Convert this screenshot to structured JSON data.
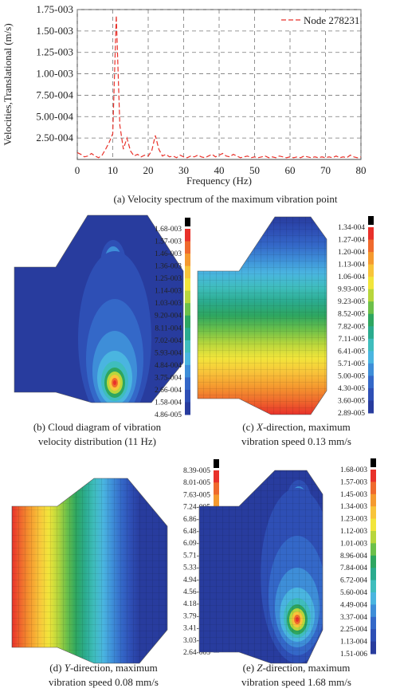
{
  "chart_data": {
    "type": "line",
    "xlabel": "Frequency (Hz)",
    "ylabel": "Velocities,Translational (m/s)",
    "caption": "(a) Velocity spectrum of the maximum vibration point",
    "x": [
      0,
      1,
      2,
      3,
      4,
      5,
      6,
      7,
      8,
      9,
      10,
      11,
      12,
      13,
      14,
      15,
      16,
      17,
      18,
      19,
      20,
      21,
      22,
      23,
      24,
      25,
      26,
      27,
      28,
      29,
      30,
      31,
      32,
      33,
      34,
      35,
      36,
      37,
      38,
      39,
      40,
      41,
      42,
      43,
      44,
      45,
      46,
      47,
      48,
      49,
      50,
      51,
      52,
      53,
      54,
      55,
      56,
      57,
      58,
      59,
      60,
      61,
      62,
      63,
      64,
      65,
      66,
      67,
      68,
      69,
      70,
      71,
      72,
      73,
      74,
      75,
      76,
      77,
      78,
      79,
      80
    ],
    "series": [
      {
        "name": "Node 278231",
        "color": "#e8312a",
        "dashed": true,
        "values": [
          8e-05,
          6e-05,
          3e-05,
          4e-05,
          7e-05,
          4e-05,
          2e-05,
          5e-05,
          0.00012,
          0.0002,
          0.0003,
          0.00168,
          0.0004,
          0.00012,
          0.00025,
          0.0001,
          4e-05,
          6e-05,
          3e-05,
          5e-05,
          4e-05,
          0.0001,
          0.00028,
          0.00012,
          4e-05,
          6e-05,
          3e-05,
          4e-05,
          2e-05,
          5e-05,
          3e-05,
          2e-05,
          4e-05,
          3e-05,
          5e-05,
          3e-05,
          2e-05,
          4e-05,
          6e-05,
          3e-05,
          5e-05,
          7e-05,
          4e-05,
          3e-05,
          6e-05,
          4e-05,
          2e-05,
          3e-05,
          4e-05,
          2e-05,
          3e-05,
          2e-05,
          3e-05,
          4e-05,
          2e-05,
          3e-05,
          2e-05,
          4e-05,
          3e-05,
          2e-05,
          3e-05,
          2e-05,
          3e-05,
          2e-05,
          4e-05,
          3e-05,
          2e-05,
          3e-05,
          2e-05,
          3e-05,
          2e-05,
          3e-05,
          2e-05,
          4e-05,
          2e-05,
          3e-05,
          2e-05,
          5e-05,
          3e-05,
          2e-05,
          3e-05
        ]
      }
    ],
    "xlim": [
      0,
      80
    ],
    "ylim": [
      0,
      0.00175
    ],
    "xticks": [
      0,
      10,
      20,
      30,
      40,
      50,
      60,
      70,
      80
    ],
    "yticks": [
      {
        "value": 0.00025,
        "label": "2.50-004"
      },
      {
        "value": 0.0005,
        "label": "5.00-004"
      },
      {
        "value": 0.00075,
        "label": "7.50-004"
      },
      {
        "value": 0.001,
        "label": "1.00-003"
      },
      {
        "value": 0.00125,
        "label": "1.25-003"
      },
      {
        "value": 0.0015,
        "label": "1.50-003"
      },
      {
        "value": 0.00175,
        "label": "1.75-003"
      }
    ],
    "grid": true,
    "legend": "upper right"
  },
  "palette": [
    "#e8312a",
    "#ef6a2d",
    "#f59a2f",
    "#f8c43a",
    "#f2e53b",
    "#b8d63c",
    "#6cc04a",
    "#2ea660",
    "#2bab8e",
    "#3fbdbd",
    "#4ab5e0",
    "#3e8ed8",
    "#3468c8",
    "#2e4fb5",
    "#283c9e"
  ],
  "panels": [
    {
      "caption": [
        [
          "(b) Cloud diagram of vibration"
        ],
        [
          "velocity distribution (11 Hz)"
        ]
      ],
      "colorbar": [
        "1.68-003",
        "1.57-003",
        "1.46-003",
        "1.36-003",
        "1.25-003",
        "1.14-003",
        "1.03-003",
        "9.20-004",
        "8.11-004",
        "7.02-004",
        "5.93-004",
        "4.84-004",
        "3.75-004",
        "2.66-004",
        "1.58-004",
        "4.86-005"
      ]
    },
    {
      "caption": [
        [
          "(c) ",
          "X",
          "-direction, maximum"
        ],
        [
          "vibration speed 0.13 mm/s"
        ]
      ],
      "colorbar": [
        "1.34-004",
        "1.27-004",
        "1.20-004",
        "1.13-004",
        "1.06-004",
        "9.93-005",
        "9.23-005",
        "8.52-005",
        "7.82-005",
        "7.11-005",
        "6.41-005",
        "5.71-005",
        "5.00-005",
        "4.30-005",
        "3.60-005",
        "2.89-005"
      ]
    },
    {
      "caption": [
        [
          "(d) ",
          "Y",
          "-direction, maximum"
        ],
        [
          "vibration speed 0.08 mm/s"
        ]
      ],
      "colorbar": [
        "8.39-005",
        "8.01-005",
        "7.63-005",
        "7.24-005",
        "6.86-005",
        "6.48-005",
        "6.09-005",
        "5.71-005",
        "5.33-005",
        "4.94-005",
        "4.56-005",
        "4.18-005",
        "3.79-005",
        "3.41-005",
        "3.03-005",
        "2.64-005"
      ]
    },
    {
      "caption": [
        [
          "(e) ",
          "Z",
          "-direction, maximum"
        ],
        [
          "vibration speed 1.68 mm/s"
        ]
      ],
      "colorbar": [
        "1.68-003",
        "1.57-003",
        "1.45-003",
        "1.34-003",
        "1.23-003",
        "1.12-003",
        "1.01-003",
        "8.96-004",
        "7.84-004",
        "6.72-004",
        "5.60-004",
        "4.49-004",
        "3.37-004",
        "2.25-004",
        "1.13-004",
        "1.51-006"
      ]
    }
  ]
}
